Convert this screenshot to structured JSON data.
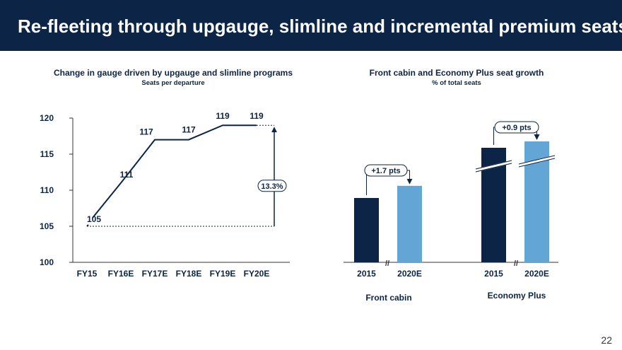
{
  "header": {
    "title": "Re-fleeting through upgauge, slimline and incremental premium seats"
  },
  "colors": {
    "header_bg": "#0c2446",
    "dark_navy": "#0c2446",
    "light_blue": "#63a6d6",
    "line": "#0c2446"
  },
  "page_number": "22",
  "chart_data": [
    {
      "type": "line",
      "title": "Change in gauge driven by upgauge and slimline programs",
      "subtitle": "Seats per departure",
      "categories": [
        "FY15",
        "FY16E",
        "FY17E",
        "FY18E",
        "FY19E",
        "FY20E"
      ],
      "values": [
        105,
        111,
        117,
        117,
        119,
        119
      ],
      "labels": [
        "105",
        "111",
        "117",
        "117",
        "119",
        "119"
      ],
      "ylim": [
        100,
        120
      ],
      "yticks": [
        100,
        105,
        110,
        115,
        120
      ],
      "ytick_labels": [
        "100",
        "105",
        "110",
        "115",
        "120"
      ],
      "annotation": "13.3%"
    },
    {
      "type": "bar",
      "title": "Front cabin and Economy Plus seat growth",
      "subtitle": "% of total seats",
      "groups": [
        {
          "name": "Front cabin",
          "categories": [
            "2015",
            "2020E"
          ],
          "values": [
            9.0,
            10.7
          ],
          "annotation": "+1.7 pts"
        },
        {
          "name": "Economy Plus",
          "categories": [
            "2015",
            "2020E"
          ],
          "values": [
            15.8,
            16.7
          ],
          "annotation": "+0.9 pts"
        }
      ],
      "axis_break_marker": "//",
      "axis_break": true
    }
  ]
}
